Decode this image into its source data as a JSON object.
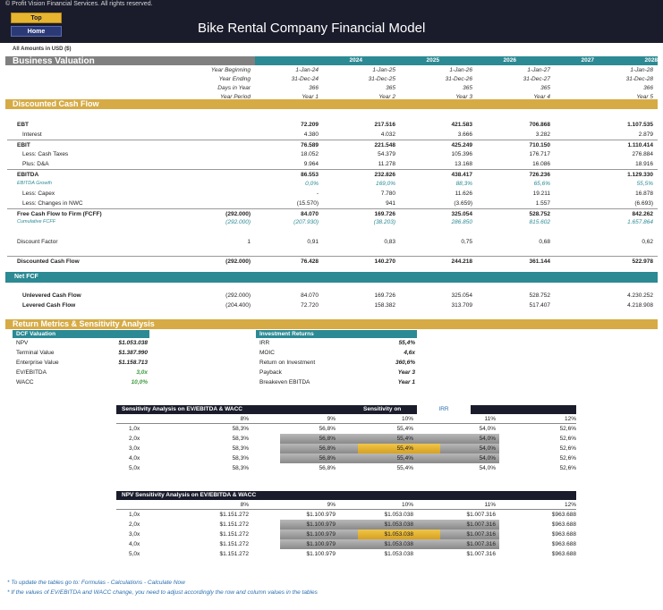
{
  "header": {
    "copyright": "© Profit Vision Financial Services. All rights reserved.",
    "top_label": "Top",
    "home_label": "Home",
    "title": "Bike Rental Company Financial Model"
  },
  "amounts_note": "All Amounts in  USD ($)",
  "business_valuation": {
    "title": "Business Valuation",
    "years": [
      "2024",
      "2025",
      "2026",
      "2027",
      "2028"
    ],
    "meta_rows": [
      {
        "label": "Year Beginning",
        "values": [
          "1-Jan-24",
          "1-Jan-25",
          "1-Jan-26",
          "1-Jan-27",
          "1-Jan-28"
        ]
      },
      {
        "label": "Year Ending",
        "values": [
          "31-Dec-24",
          "31-Dec-25",
          "31-Dec-26",
          "31-Dec-27",
          "31-Dec-28"
        ]
      },
      {
        "label": "Days in Year",
        "values": [
          "366",
          "365",
          "365",
          "365",
          "366"
        ]
      },
      {
        "label": "Year Period",
        "values": [
          "Year 1",
          "Year 2",
          "Year 3",
          "Year 4",
          "Year 5"
        ]
      }
    ]
  },
  "dcf": {
    "title": "Discounted Cash Flow",
    "rows": [
      {
        "label": "EBT",
        "c0": "",
        "values": [
          "72.209",
          "217.516",
          "421.583",
          "706.868",
          "1.107.535"
        ]
      },
      {
        "label": "Interest",
        "c0": "",
        "values": [
          "4.380",
          "4.032",
          "3.666",
          "3.282",
          "2.879"
        ]
      },
      {
        "label": "EBIT",
        "c0": "",
        "values": [
          "76.589",
          "221.548",
          "425.249",
          "710.150",
          "1.110.414"
        ]
      },
      {
        "label": "Less: Cash Taxes",
        "c0": "",
        "values": [
          "18.052",
          "54.379",
          "105.396",
          "176.717",
          "276.884"
        ]
      },
      {
        "label": "Plus: D&A",
        "c0": "",
        "values": [
          "9.964",
          "11.278",
          "13.168",
          "16.086",
          "18.916"
        ]
      },
      {
        "label": "EBITDA",
        "c0": "",
        "values": [
          "86.553",
          "232.826",
          "438.417",
          "726.236",
          "1.129.330"
        ]
      },
      {
        "label": "EBITDA Growth",
        "c0": "",
        "values": [
          "0,0%",
          "169,0%",
          "88,3%",
          "65,6%",
          "55,5%"
        ]
      },
      {
        "label": "Less: Capex",
        "c0": "",
        "values": [
          "-",
          "7.780",
          "11.626",
          "19.211",
          "16.878"
        ]
      },
      {
        "label": "Less: Changes in NWC",
        "c0": "",
        "values": [
          "(15.570)",
          "941",
          "(3.659)",
          "1.557",
          "(6.693)"
        ]
      },
      {
        "label": "Free Cash Flow to Firm (FCFF)",
        "c0": "(292.000)",
        "values": [
          "84.070",
          "169.726",
          "325.054",
          "528.752",
          "842.262"
        ]
      },
      {
        "label": "Cumulative FCFF",
        "c0": "(292.000)",
        "values": [
          "(207.930)",
          "(38.203)",
          "286.850",
          "815.602",
          "1.657.864"
        ]
      },
      {
        "label": "Discount Factor",
        "c0": "1",
        "values": [
          "0,91",
          "0,83",
          "0,75",
          "0,68",
          "0,62"
        ]
      },
      {
        "label": "Discounted Cash Flow",
        "c0": "(292.000)",
        "values": [
          "76.428",
          "140.270",
          "244.218",
          "361.144",
          "522.978"
        ]
      }
    ]
  },
  "net_fcf": {
    "title": "Net FCF",
    "rows": [
      {
        "label": "Unlevered Cash Flow",
        "c0": "(292.000)",
        "values": [
          "84.070",
          "169.726",
          "325.054",
          "528.752",
          "4.230.252"
        ]
      },
      {
        "label": "Levered Cash Flow",
        "c0": "(204.400)",
        "values": [
          "72.720",
          "158.382",
          "313.709",
          "517.407",
          "4.218.908"
        ]
      }
    ]
  },
  "return_metrics": {
    "title": "Return Metrics & Sensitivity Analysis",
    "dcf_valuation": {
      "title": "DCF Valuation",
      "rows": [
        {
          "label": "NPV",
          "value": "$1.053.038"
        },
        {
          "label": "Terminal Value",
          "value": "$1.387.990"
        },
        {
          "label": "Enterprise Value",
          "value": "$1.158.713"
        },
        {
          "label": "EV/EBITDA",
          "value": "3,0x"
        },
        {
          "label": "WACC",
          "value": "10,0%"
        }
      ]
    },
    "investment_returns": {
      "title": "Investment Returns",
      "rows": [
        {
          "label": "IRR",
          "value": "55,4%"
        },
        {
          "label": "MOIC",
          "value": "4,6x"
        },
        {
          "label": "Return on Investment",
          "value": "360,6%"
        },
        {
          "label": "Payback",
          "value": "Year 3"
        },
        {
          "label": "Breakeven EBITDA",
          "value": "Year 1"
        }
      ]
    }
  },
  "sens1": {
    "title": "Sensitivity Analysis on EV/EBITDA & WACC",
    "sens_on_label": "Sensitivity on",
    "sens_on_value": "IRR",
    "cols": [
      "8%",
      "9%",
      "10%",
      "11%",
      "12%"
    ],
    "rows": [
      {
        "label": "1,0x",
        "values": [
          "58,3%",
          "56,8%",
          "55,4%",
          "54,0%",
          "52,6%"
        ]
      },
      {
        "label": "2,0x",
        "values": [
          "58,3%",
          "56,8%",
          "55,4%",
          "54,0%",
          "52,6%"
        ]
      },
      {
        "label": "3,0x",
        "values": [
          "58,3%",
          "56,8%",
          "55,4%",
          "54,0%",
          "52,6%"
        ]
      },
      {
        "label": "4,0x",
        "values": [
          "58,3%",
          "56,8%",
          "55,4%",
          "54,0%",
          "52,6%"
        ]
      },
      {
        "label": "5,0x",
        "values": [
          "58,3%",
          "56,8%",
          "55,4%",
          "54,0%",
          "52,6%"
        ]
      }
    ]
  },
  "sens2": {
    "title": "NPV Sensitivity Analysis on EV/EBITDA & WACC",
    "cols": [
      "8%",
      "9%",
      "10%",
      "11%",
      "12%"
    ],
    "rows": [
      {
        "label": "1,0x",
        "values": [
          "$1.151.272",
          "$1.100.979",
          "$1.053.038",
          "$1.007.316",
          "$963.688"
        ]
      },
      {
        "label": "2,0x",
        "values": [
          "$1.151.272",
          "$1.100.979",
          "$1.053.038",
          "$1.007.316",
          "$963.688"
        ]
      },
      {
        "label": "3,0x",
        "values": [
          "$1.151.272",
          "$1.100.979",
          "$1.053.038",
          "$1.007.316",
          "$963.688"
        ]
      },
      {
        "label": "4,0x",
        "values": [
          "$1.151.272",
          "$1.100.979",
          "$1.053.038",
          "$1.007.316",
          "$963.688"
        ]
      },
      {
        "label": "5,0x",
        "values": [
          "$1.151.272",
          "$1.100.979",
          "$1.053.038",
          "$1.007.316",
          "$963.688"
        ]
      }
    ]
  },
  "notes": [
    "* To update the tables go to: Formulas - Calculations - Calculate Now",
    "* If the values of EV/EBITDA and WACC change, you need to adjust accordingly the row and column values in the tables"
  ]
}
